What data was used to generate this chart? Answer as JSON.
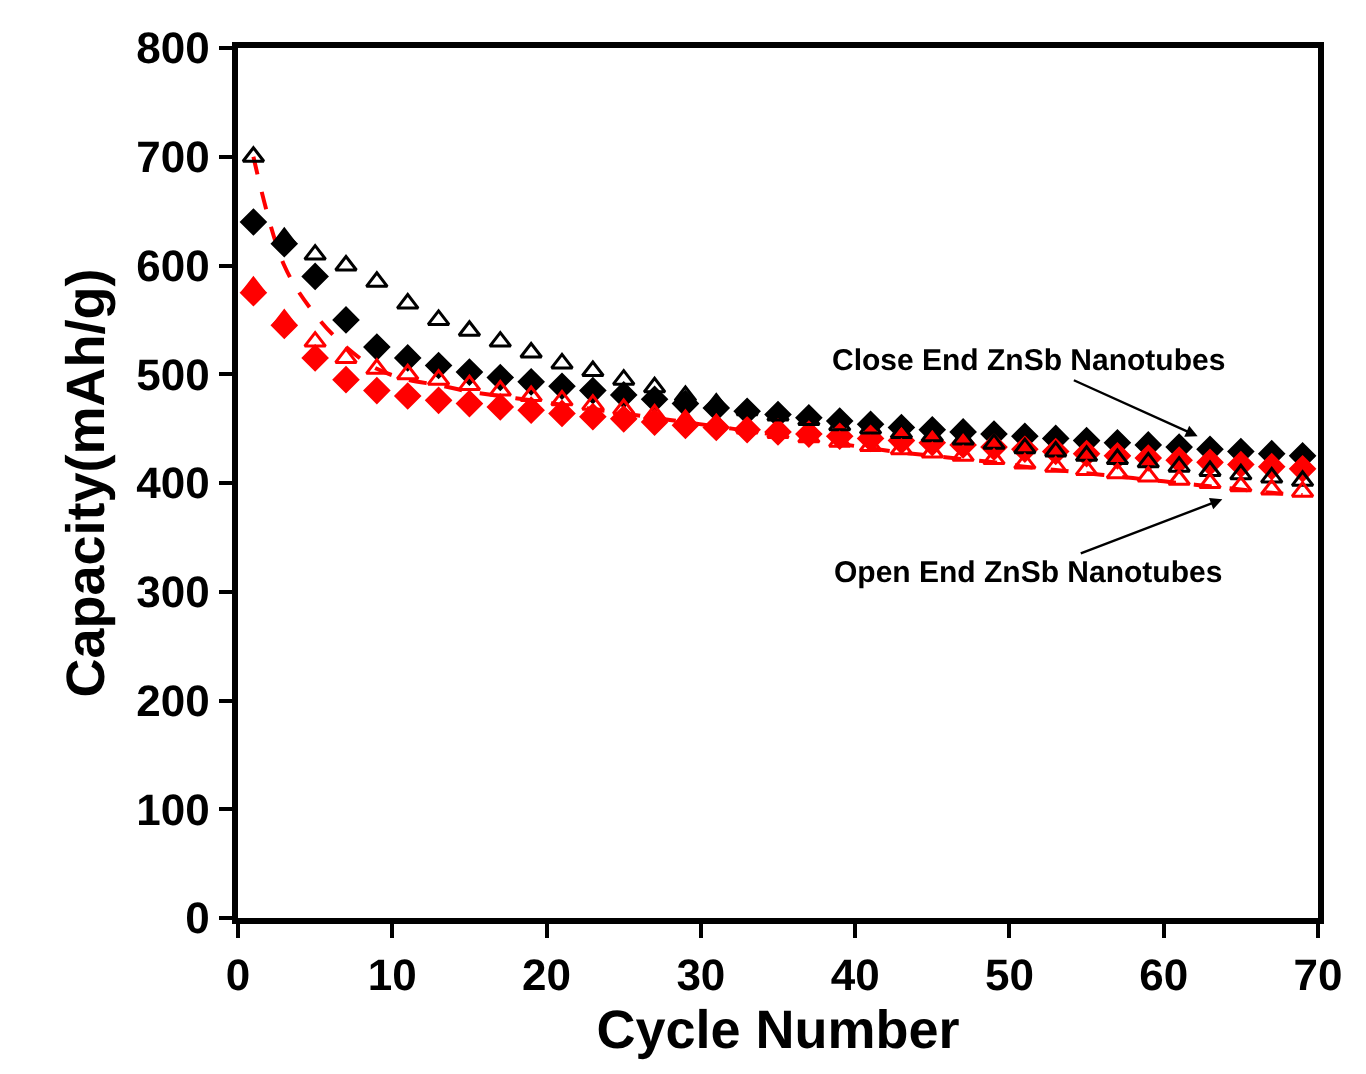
{
  "chart_data": {
    "type": "scatter",
    "xlabel": "Cycle Number",
    "ylabel": "Capacity(mAh/g)",
    "x": [
      1,
      3,
      5,
      7,
      9,
      11,
      13,
      15,
      17,
      19,
      21,
      23,
      25,
      27,
      29,
      31,
      33,
      35,
      37,
      39,
      41,
      43,
      45,
      47,
      49,
      51,
      53,
      55,
      57,
      59,
      61,
      63,
      65,
      67,
      69
    ],
    "series": [
      {
        "type": "line",
        "color": "#ff0000",
        "line_style": "dashed",
        "marker": "none",
        "values": [
          700,
          600,
          555,
          525,
          505,
          495,
          490,
          484,
          480,
          476,
          472,
          468,
          464,
          460,
          456,
          452,
          448,
          444,
          440,
          436,
          432,
          428,
          425,
          422,
          419,
          415,
          412,
          409,
          406,
          403,
          400,
          397,
          394,
          391,
          389
        ]
      },
      {
        "color": "#000000",
        "values": [
          640,
          620,
          590,
          550,
          525,
          515,
          508,
          502,
          497,
          493,
          489,
          485,
          481,
          477,
          473,
          469,
          466,
          463,
          460,
          457,
          454,
          451,
          449,
          447,
          445,
          443,
          441,
          439,
          437,
          435,
          433,
          431,
          429,
          427,
          425
        ]
      },
      {
        "color": "#ff0000",
        "values": [
          575,
          545,
          515,
          495,
          485,
          480,
          476,
          473,
          470,
          467,
          464,
          461,
          459,
          456,
          453,
          451,
          449,
          447,
          445,
          443,
          441,
          439,
          437,
          435,
          433,
          431,
          429,
          427,
          425,
          423,
          421,
          419,
          417,
          415,
          413
        ]
      },
      {
        "color": "#000000",
        "marker": "triangle",
        "values": [
          700,
          625,
          610,
          600,
          585,
          565,
          550,
          540,
          530,
          520,
          510,
          503,
          495,
          488,
          480,
          473,
          467,
          462,
          458,
          453,
          450,
          446,
          443,
          440,
          436,
          432,
          429,
          425,
          422,
          419,
          415,
          411,
          408,
          405,
          402
        ]
      },
      {
        "color": "#ff0000",
        "marker": "triangle",
        "values": [
          580,
          550,
          530,
          515,
          505,
          500,
          495,
          490,
          485,
          480,
          476,
          472,
          468,
          463,
          458,
          454,
          450,
          446,
          442,
          438,
          434,
          431,
          428,
          425,
          422,
          418,
          415,
          412,
          409,
          406,
          403,
          400,
          397,
          394,
          392
        ]
      }
    ],
    "annotations": [
      {
        "text": "Close End ZnSb Nanotubes",
        "x": 62.2,
        "y": 443
      },
      {
        "text": "Open End ZnSb Nanotubes",
        "x": 63.8,
        "y": 385
      }
    ],
    "xlim": [
      0,
      70
    ],
    "xticks": [
      0,
      10,
      20,
      30,
      40,
      50,
      60,
      70
    ],
    "ylim": [
      0,
      800
    ],
    "yticks": [
      0,
      100,
      200,
      300,
      400,
      500,
      600,
      700,
      800
    ],
    "marker": "diamond"
  }
}
